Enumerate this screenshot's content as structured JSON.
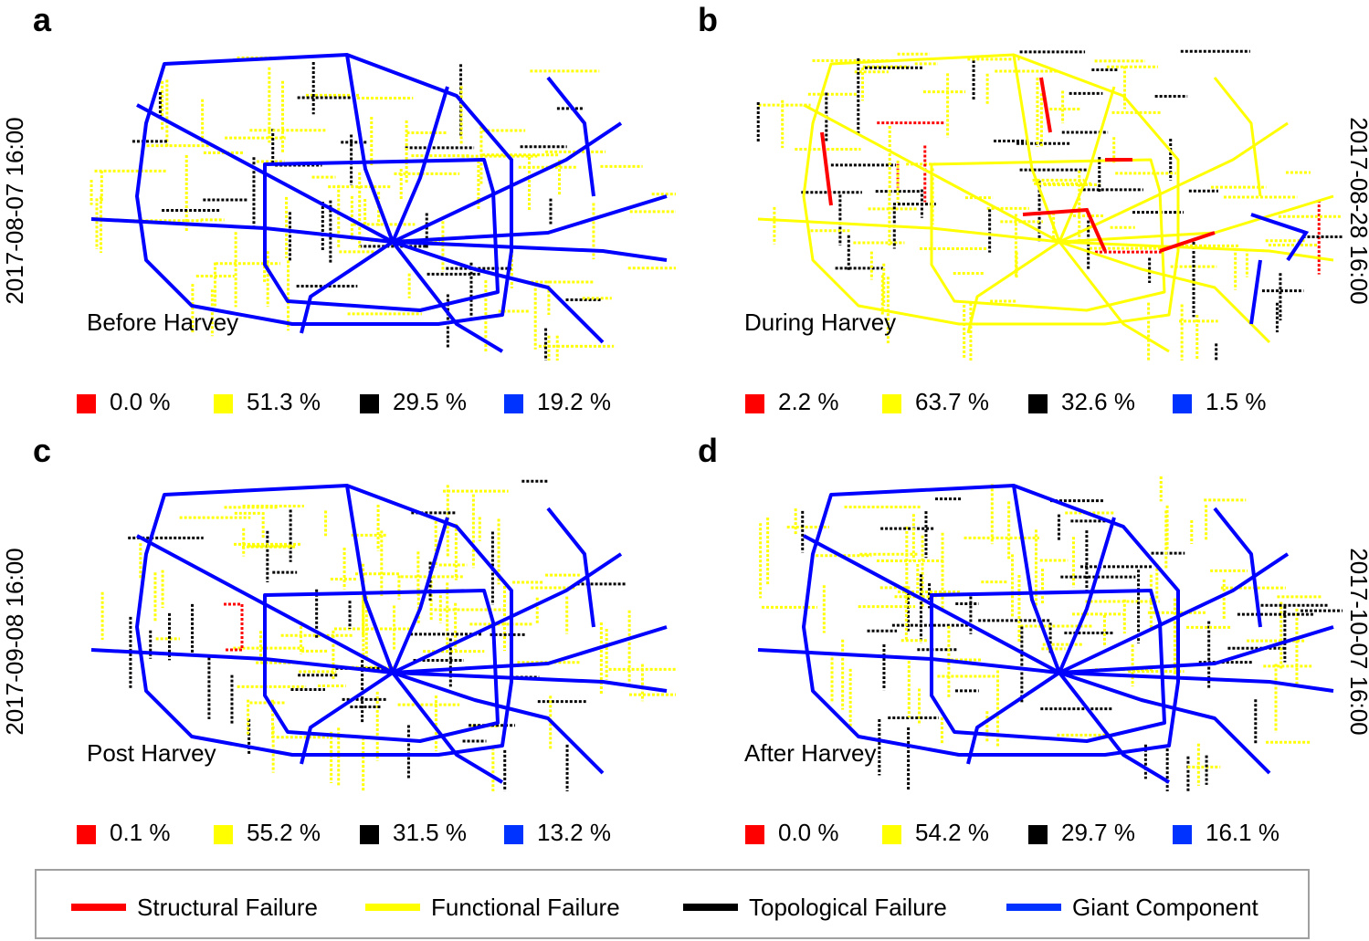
{
  "colors": {
    "structural": "#ff0000",
    "functional": "#ffff00",
    "topological": "#000000",
    "giant": "#0000ff"
  },
  "panels": [
    {
      "letter": "a",
      "label": "Before Harvey",
      "timestamp": "2017-08-07 16:00",
      "timestamp_side": "left",
      "percentages": [
        "0.0 %",
        "51.3 %",
        "29.5 %",
        "19.2 %"
      ]
    },
    {
      "letter": "b",
      "label": "During Harvey",
      "timestamp": "2017-08-28 16:00",
      "timestamp_side": "right",
      "percentages": [
        "2.2 %",
        "63.7 %",
        "32.6 %",
        "1.5 %"
      ]
    },
    {
      "letter": "c",
      "label": "Post Harvey",
      "timestamp": "2017-09-08 16:00",
      "timestamp_side": "left",
      "percentages": [
        "0.1 %",
        "55.2 %",
        "31.5 %",
        "13.2 %"
      ]
    },
    {
      "letter": "d",
      "label": "After Harvey",
      "timestamp": "2017-10-07 16:00",
      "timestamp_side": "right",
      "percentages": [
        "0.0 %",
        "54.2 %",
        "29.7 %",
        "16.1 %"
      ]
    }
  ],
  "legend": {
    "items": [
      {
        "label": "Structural Failure",
        "color": "#ff0000"
      },
      {
        "label": "Functional Failure",
        "color": "#ffff00"
      },
      {
        "label": "Topological Failure",
        "color": "#000000"
      },
      {
        "label": "Giant Component",
        "color": "#0000ff"
      }
    ]
  }
}
